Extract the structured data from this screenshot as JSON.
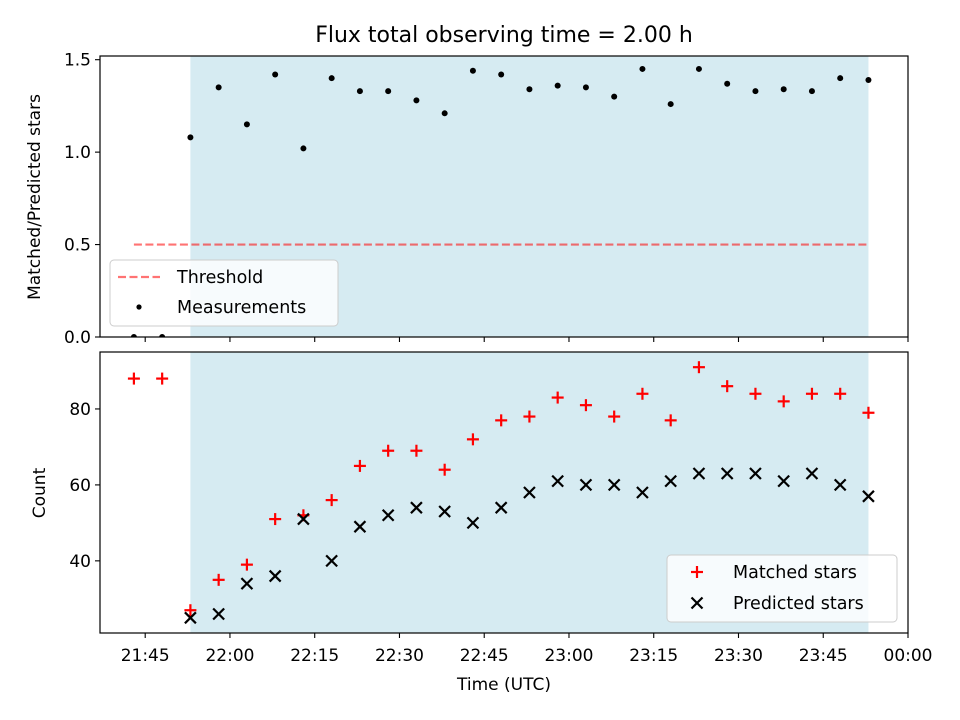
{
  "colors": {
    "shade": "#add8e6",
    "threshold": "#ff0000",
    "measurement": "#000000",
    "matched": "#ff0000",
    "predicted": "#000000"
  },
  "chart_data": [
    {
      "type": "scatter",
      "title": "Flux total observing time = 2.00 h",
      "ylabel": "Matched/Predicted stars",
      "ylim": [
        0,
        1.52
      ],
      "yticks": [
        "0.0",
        "0.5",
        "1.0",
        "1.5"
      ],
      "shaded_span": [
        "21:53",
        "23:53"
      ],
      "threshold": {
        "name": "Threshold",
        "value": 0.5,
        "x_range": [
          "21:43",
          "23:53"
        ],
        "style": "dashed"
      },
      "legend": {
        "placement": "lower-left",
        "entries": [
          "Threshold",
          "Measurements"
        ]
      },
      "series": [
        {
          "name": "Measurements",
          "marker": "dot",
          "x": [
            "21:43",
            "21:48",
            "21:53",
            "21:58",
            "22:03",
            "22:08",
            "22:13",
            "22:18",
            "22:23",
            "22:28",
            "22:33",
            "22:38",
            "22:43",
            "22:48",
            "22:53",
            "22:58",
            "23:03",
            "23:08",
            "23:13",
            "23:18",
            "23:23",
            "23:28",
            "23:33",
            "23:38",
            "23:43",
            "23:48",
            "23:53"
          ],
          "y": [
            0.0,
            0.0,
            1.08,
            1.35,
            1.15,
            1.42,
            1.02,
            1.4,
            1.33,
            1.33,
            1.28,
            1.21,
            1.44,
            1.42,
            1.34,
            1.36,
            1.35,
            1.3,
            1.45,
            1.26,
            1.45,
            1.37,
            1.33,
            1.34,
            1.33,
            1.4,
            1.39
          ]
        }
      ]
    },
    {
      "type": "scatter",
      "xlabel": "Time (UTC)",
      "ylabel": "Count",
      "ylim": [
        21,
        95
      ],
      "yticks": [
        "40",
        "60",
        "80"
      ],
      "xlim": [
        "21:37",
        "00:00"
      ],
      "xticks": [
        "21:45",
        "22:00",
        "22:15",
        "22:30",
        "22:45",
        "23:00",
        "23:15",
        "23:30",
        "23:45",
        "00:00"
      ],
      "shaded_span": [
        "21:53",
        "23:53"
      ],
      "legend": {
        "placement": "lower-right",
        "entries": [
          "Matched stars",
          "Predicted stars"
        ]
      },
      "series": [
        {
          "name": "Matched stars",
          "marker": "plus",
          "x": [
            "21:43",
            "21:48",
            "21:53",
            "21:58",
            "22:03",
            "22:08",
            "22:13",
            "22:18",
            "22:23",
            "22:28",
            "22:33",
            "22:38",
            "22:43",
            "22:48",
            "22:53",
            "22:58",
            "23:03",
            "23:08",
            "23:13",
            "23:18",
            "23:23",
            "23:28",
            "23:33",
            "23:38",
            "23:43",
            "23:48",
            "23:53"
          ],
          "y": [
            88,
            88,
            27,
            35,
            39,
            51,
            52,
            56,
            65,
            69,
            69,
            64,
            72,
            77,
            78,
            83,
            81,
            78,
            84,
            77,
            91,
            86,
            84,
            82,
            84,
            84,
            79
          ]
        },
        {
          "name": "Predicted stars",
          "marker": "x",
          "x": [
            "21:53",
            "21:58",
            "22:03",
            "22:08",
            "22:13",
            "22:18",
            "22:23",
            "22:28",
            "22:33",
            "22:38",
            "22:43",
            "22:48",
            "22:53",
            "22:58",
            "23:03",
            "23:08",
            "23:13",
            "23:18",
            "23:23",
            "23:28",
            "23:33",
            "23:38",
            "23:43",
            "23:48",
            "23:53"
          ],
          "y": [
            25,
            26,
            34,
            36,
            51,
            40,
            49,
            52,
            54,
            53,
            50,
            54,
            58,
            61,
            60,
            60,
            58,
            61,
            63,
            63,
            63,
            61,
            63,
            60,
            57
          ]
        }
      ]
    }
  ]
}
